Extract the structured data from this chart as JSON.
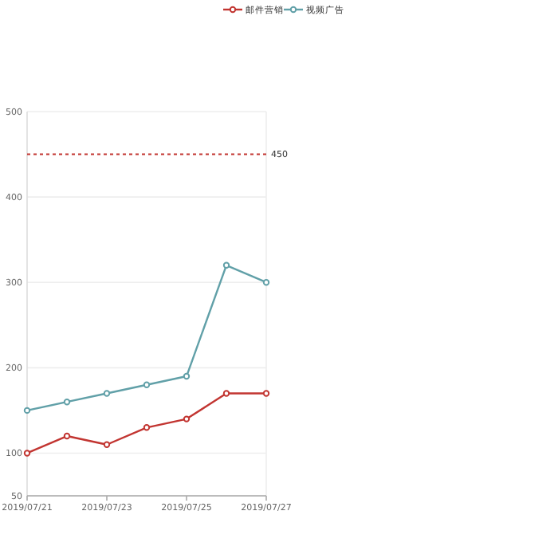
{
  "chart_data": {
    "type": "line",
    "categories": [
      "2019/07/21",
      null,
      "2019/07/23",
      null,
      "2019/07/25",
      null,
      "2019/07/27"
    ],
    "series": [
      {
        "name": "邮件营销",
        "color": "#c23531",
        "values": [
          100,
          120,
          110,
          130,
          140,
          170,
          170
        ]
      },
      {
        "name": "视频广告",
        "color": "#61a0a8",
        "values": [
          150,
          160,
          170,
          180,
          190,
          320,
          300
        ]
      }
    ],
    "ylim": [
      50,
      500
    ],
    "yticks": [
      50,
      100,
      200,
      300,
      400,
      500
    ],
    "grid": "y",
    "legend": "top",
    "marker": "circle",
    "ref_lines": [
      {
        "axis": "y",
        "value": 450,
        "label": "450",
        "color": "#c23531",
        "line_style": "dotted"
      }
    ]
  }
}
